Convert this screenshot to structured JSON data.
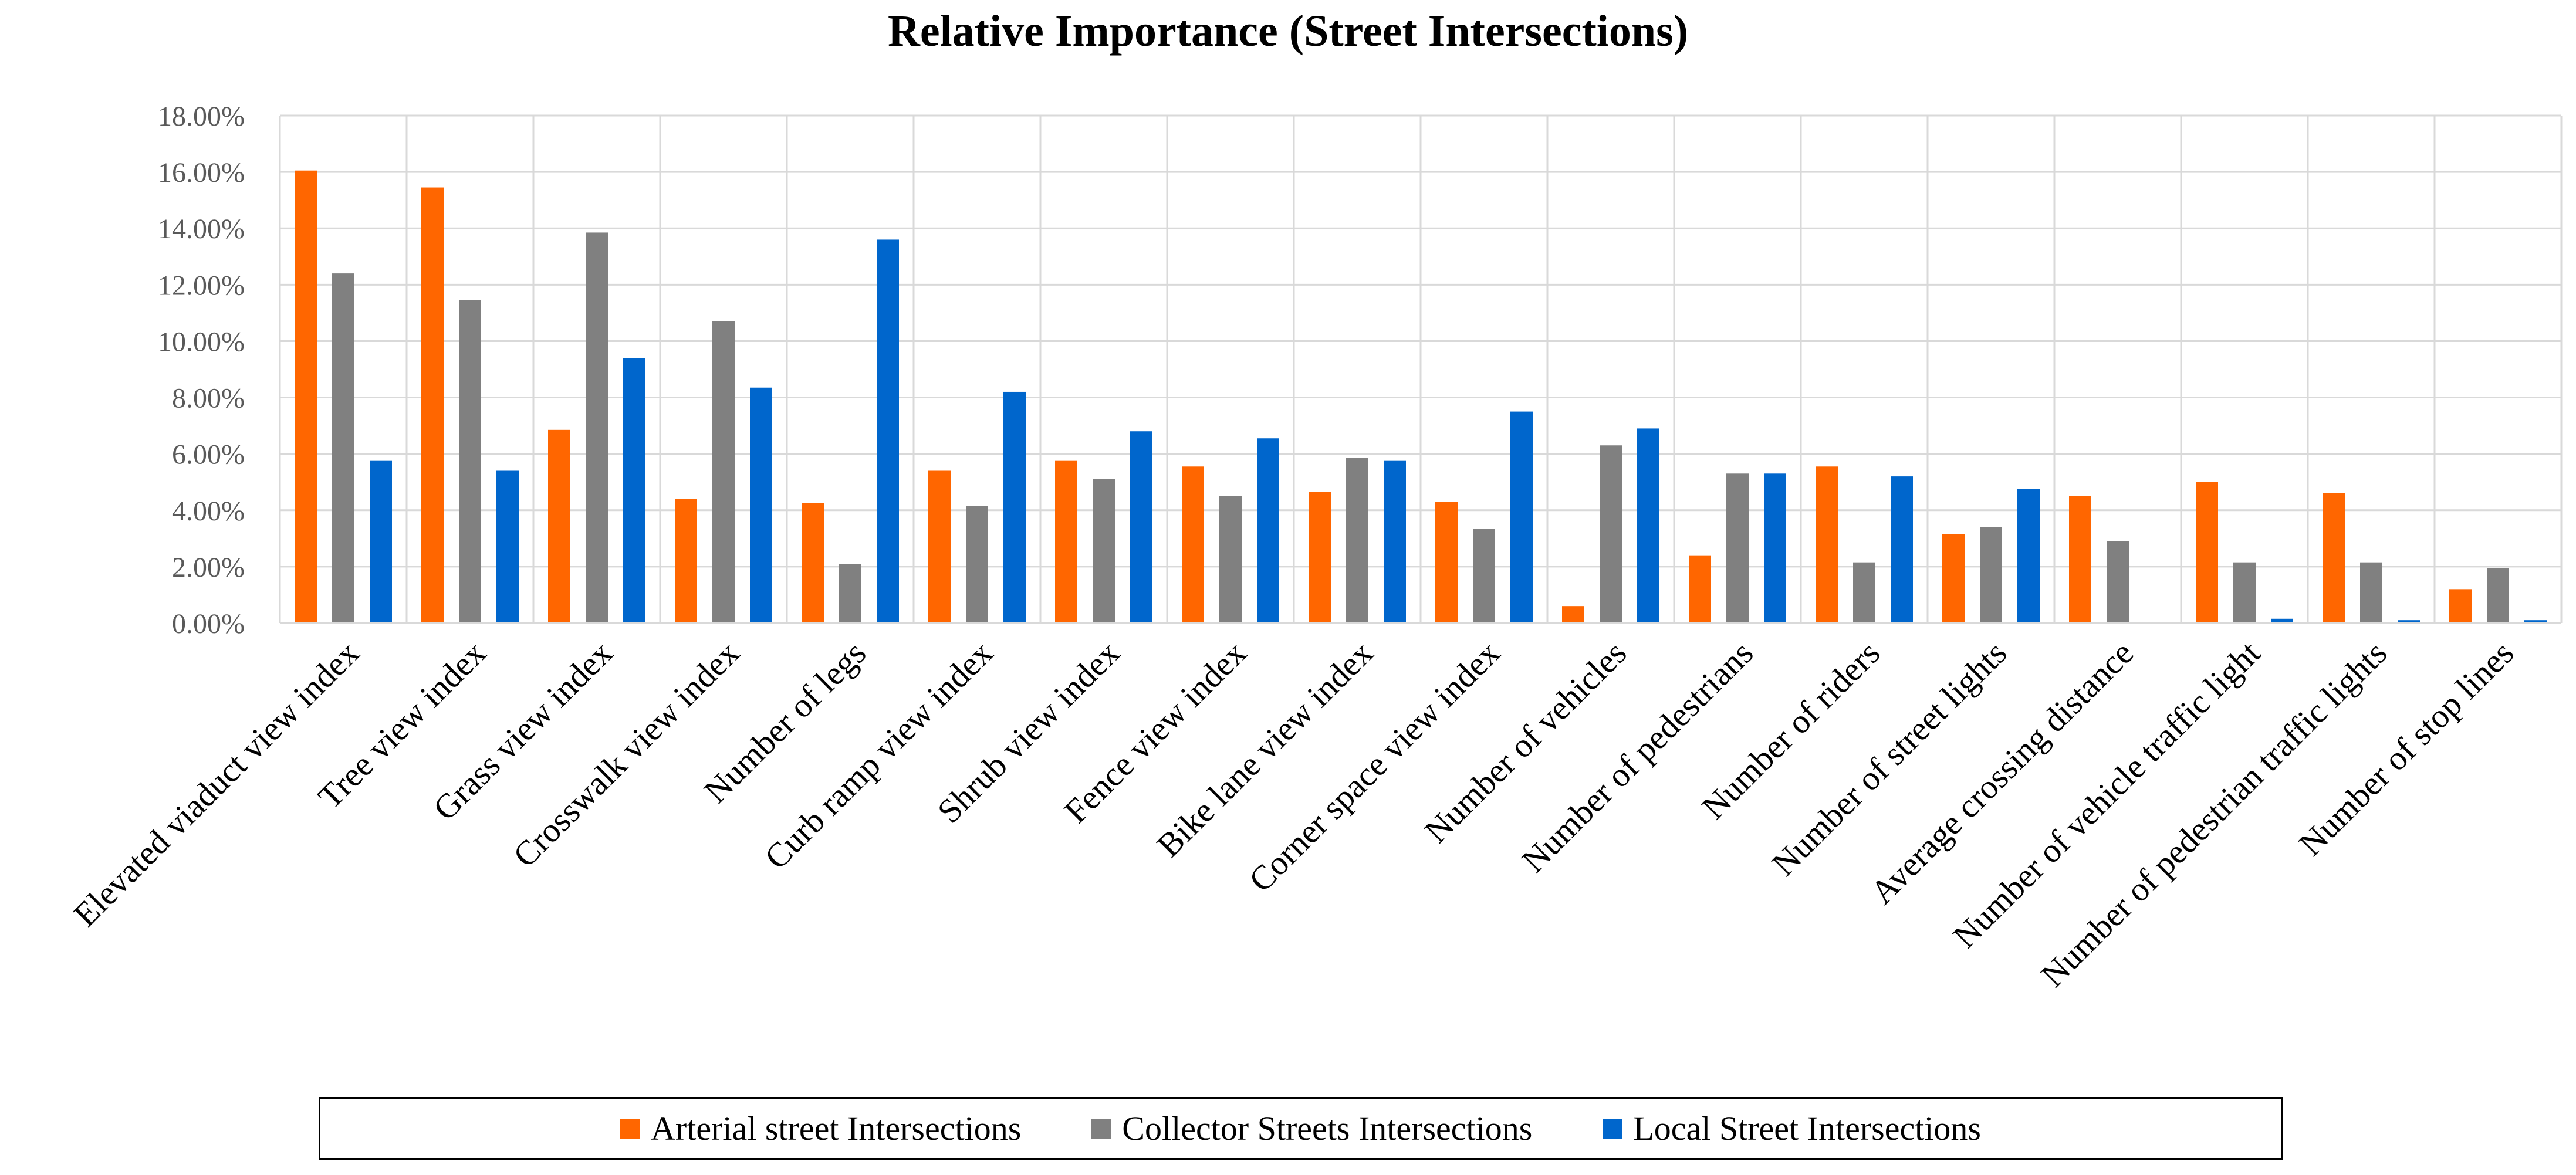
{
  "chart_data": {
    "type": "bar",
    "title": "Relative Importance (Street Intersections)",
    "xlabel": "",
    "ylabel": "",
    "ylim": [
      0,
      18
    ],
    "y_ticks": [
      "0.00%",
      "2.00%",
      "4.00%",
      "6.00%",
      "8.00%",
      "10.00%",
      "12.00%",
      "14.00%",
      "16.00%",
      "18.00%"
    ],
    "grid": true,
    "legend_position": "bottom",
    "categories": [
      "Elevated viaduct view index",
      "Tree view index",
      "Grass view index",
      "Crosswalk view index",
      "Number of legs",
      "Curb ramp view index",
      "Shrub view index",
      "Fence view index",
      "Bike lane view index",
      "Corner space view index",
      "Number of vehicles",
      "Number of pedestrians",
      "Number of riders",
      "Number of street lights",
      "Average crossing distance",
      "Number of vehicle traffic light",
      "Number of pedestrian traffic lights",
      "Number of stop lines"
    ],
    "series": [
      {
        "name": "Arterial street Intersections",
        "color": "#ff6600",
        "values": [
          16.05,
          15.45,
          6.85,
          4.4,
          4.25,
          5.4,
          5.75,
          5.55,
          4.65,
          4.3,
          0.6,
          2.4,
          5.55,
          3.15,
          4.5,
          5.0,
          4.6,
          1.2
        ]
      },
      {
        "name": "Collector Streets Intersections",
        "color": "#808080",
        "values": [
          12.4,
          11.45,
          13.85,
          10.7,
          2.1,
          4.15,
          5.1,
          4.5,
          5.85,
          3.35,
          6.3,
          5.3,
          2.15,
          3.4,
          2.9,
          2.15,
          2.15,
          1.95
        ]
      },
      {
        "name": "Local Street Intersections",
        "color": "#0066cc",
        "values": [
          5.75,
          5.4,
          9.4,
          8.35,
          13.6,
          8.2,
          6.8,
          6.55,
          5.75,
          7.5,
          6.9,
          5.3,
          5.2,
          4.75,
          0.0,
          0.15,
          0.1,
          0.1
        ]
      }
    ]
  }
}
